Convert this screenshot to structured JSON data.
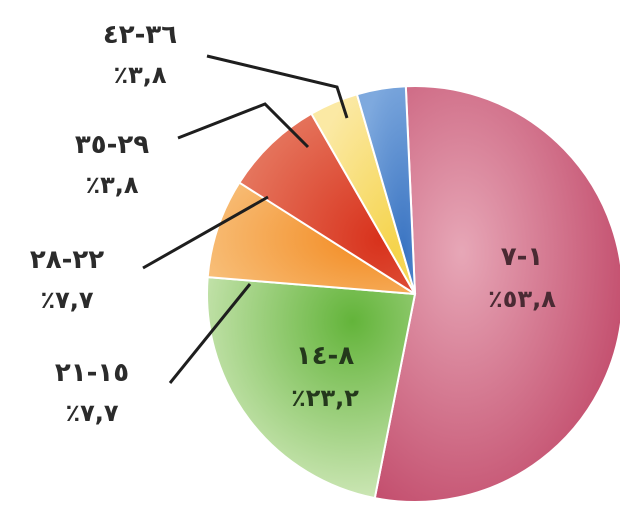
{
  "chart_data": {
    "type": "pie",
    "title": "",
    "slices": [
      {
        "category": "١-٧",
        "value": 53.8,
        "label": "٪٥٣,٨",
        "color": "#c4546f"
      },
      {
        "category": "٨-١٤",
        "value": 23.2,
        "label": "٪٢٣,٢",
        "color": "#7cbb56"
      },
      {
        "category": "١٥-٢١",
        "value": 7.7,
        "label": "٪٧,٧",
        "color": "#f39a43"
      },
      {
        "category": "٢٢-٢٨",
        "value": 7.7,
        "label": "٪٧,٧",
        "color": "#d9543b"
      },
      {
        "category": "٢٩-٣٥",
        "value": 3.8,
        "label": "٪٣,٨",
        "color": "#f7d96a"
      },
      {
        "category": "٣٦-٤٢",
        "value": 3.8,
        "label": "٪٣,٨",
        "color": "#4f86c9"
      }
    ],
    "legend": "none",
    "grid": false
  }
}
